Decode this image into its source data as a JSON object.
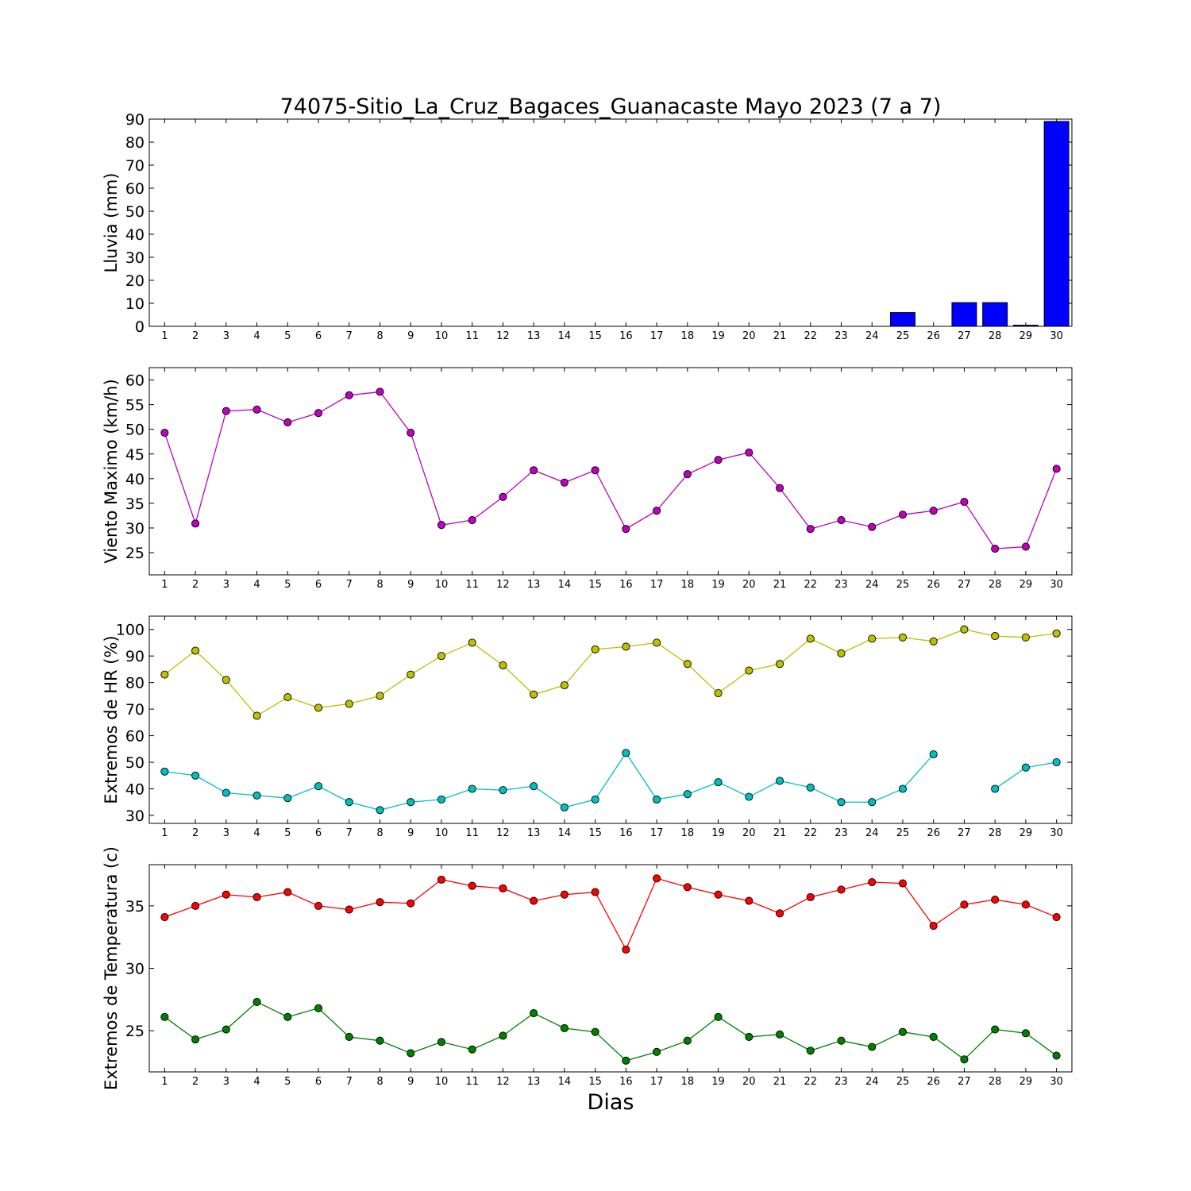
{
  "chart_data": [
    {
      "type": "bar",
      "title": "74075-Sitio_La_Cruz_Bagaces_Guanacaste Mayo 2023  (7 a 7)",
      "ylabel": "Lluvia (mm)",
      "xlabel": "",
      "ylim": [
        0,
        90
      ],
      "yticks": [
        0,
        10,
        20,
        30,
        40,
        50,
        60,
        70,
        80,
        90
      ],
      "categories": [
        1,
        2,
        3,
        4,
        5,
        6,
        7,
        8,
        9,
        10,
        11,
        12,
        13,
        14,
        15,
        16,
        17,
        18,
        19,
        20,
        21,
        22,
        23,
        24,
        25,
        26,
        27,
        28,
        29,
        30
      ],
      "series": [
        {
          "color": "#0000ff",
          "values": [
            0,
            0,
            0,
            0,
            0,
            0,
            0,
            0,
            0,
            0,
            0,
            0,
            0,
            0,
            0,
            0,
            0,
            0,
            0,
            0,
            0,
            0,
            0,
            0,
            6,
            0,
            10.3,
            10.3,
            0.5,
            89
          ]
        }
      ]
    },
    {
      "type": "line",
      "title": "",
      "ylabel": "Viento Maximo (km/h)",
      "xlabel": "",
      "ylim": [
        20.5,
        62.5
      ],
      "yticks": [
        25,
        30,
        35,
        40,
        45,
        50,
        55,
        60
      ],
      "x": [
        1,
        2,
        3,
        4,
        5,
        6,
        7,
        8,
        9,
        10,
        11,
        12,
        13,
        14,
        15,
        16,
        17,
        18,
        19,
        20,
        21,
        22,
        23,
        24,
        25,
        26,
        27,
        28,
        29,
        30
      ],
      "series": [
        {
          "color": "#bf00bf",
          "values": [
            49.3,
            30.9,
            53.7,
            54.0,
            51.4,
            53.3,
            56.9,
            57.6,
            49.3,
            30.6,
            31.6,
            36.3,
            41.7,
            39.2,
            41.7,
            29.8,
            33.5,
            40.9,
            43.8,
            45.3,
            38.1,
            29.8,
            31.6,
            30.2,
            32.7,
            33.5,
            35.3,
            25.8,
            26.2,
            42.0
          ]
        }
      ]
    },
    {
      "type": "line",
      "title": "",
      "ylabel": "Extremos de HR (%)",
      "xlabel": "",
      "ylim": [
        27,
        105
      ],
      "yticks": [
        30,
        40,
        50,
        60,
        70,
        80,
        90,
        100
      ],
      "x": [
        1,
        2,
        3,
        4,
        5,
        6,
        7,
        8,
        9,
        10,
        11,
        12,
        13,
        14,
        15,
        16,
        17,
        18,
        19,
        20,
        21,
        22,
        23,
        24,
        25,
        26,
        27,
        28,
        29,
        30
      ],
      "series": [
        {
          "color": "#bfbf00",
          "values": [
            83,
            92,
            81,
            67.5,
            74.5,
            70.5,
            72,
            75,
            83,
            90,
            95,
            86.5,
            75.5,
            79,
            92.5,
            93.5,
            95,
            87,
            76,
            84.5,
            87,
            96.5,
            91,
            96.5,
            97,
            95.5,
            100,
            97.5,
            97,
            98.5
          ]
        },
        {
          "color": "#00bfbf",
          "values": [
            46.5,
            45,
            38.5,
            37.5,
            36.5,
            41,
            35,
            32,
            35,
            36,
            40,
            39.5,
            41,
            33,
            36,
            53.5,
            36,
            38,
            42.5,
            37,
            43,
            40.5,
            35,
            35,
            40,
            53,
            null,
            40,
            48,
            50
          ]
        }
      ]
    },
    {
      "type": "line",
      "title": "",
      "ylabel": "Extremos de Temperatura (c)",
      "xlabel": "Dias",
      "ylim": [
        21.7,
        38.3
      ],
      "yticks": [
        25,
        30,
        35
      ],
      "x": [
        1,
        2,
        3,
        4,
        5,
        6,
        7,
        8,
        9,
        10,
        11,
        12,
        13,
        14,
        15,
        16,
        17,
        18,
        19,
        20,
        21,
        22,
        23,
        24,
        25,
        26,
        27,
        28,
        29,
        30
      ],
      "series": [
        {
          "color": "#ff0000",
          "values": [
            34.1,
            35.0,
            35.9,
            35.7,
            36.1,
            35.0,
            34.7,
            35.3,
            35.2,
            37.1,
            36.6,
            36.4,
            35.4,
            35.9,
            36.1,
            31.5,
            37.2,
            36.5,
            35.9,
            35.4,
            34.4,
            35.7,
            36.3,
            36.9,
            36.8,
            33.4,
            35.1,
            35.5,
            35.1,
            34.1
          ]
        },
        {
          "color": "#008000",
          "values": [
            26.1,
            24.3,
            25.1,
            27.3,
            26.1,
            26.8,
            24.5,
            24.2,
            23.2,
            24.1,
            23.5,
            24.6,
            26.4,
            25.2,
            24.9,
            22.6,
            23.3,
            24.2,
            26.1,
            24.5,
            24.7,
            23.4,
            24.2,
            23.7,
            24.9,
            24.5,
            22.7,
            25.1,
            24.8,
            23.0
          ]
        }
      ]
    }
  ]
}
